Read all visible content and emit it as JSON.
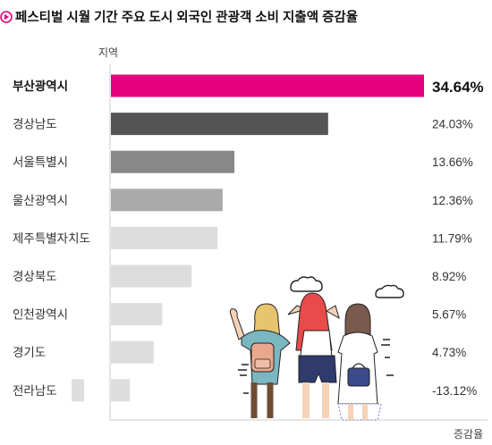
{
  "chart_data": {
    "type": "bar",
    "orientation": "horizontal",
    "title": "페스티벌 시월 기간 주요 도시 외국인 관광객 소비 지출액 증감율",
    "ylabel": "지역",
    "xlabel": "증감율",
    "categories": [
      "부산광역시",
      "경상남도",
      "서울특별시",
      "울산광역시",
      "제주특별자치도",
      "경상북도",
      "인천광역시",
      "경기도",
      "전라남도"
    ],
    "values": [
      34.64,
      24.03,
      13.66,
      12.36,
      11.79,
      8.92,
      5.67,
      4.73,
      -13.12
    ],
    "value_labels": [
      "34.64%",
      "24.03%",
      "13.66%",
      "12.36%",
      "11.79%",
      "8.92%",
      "5.67%",
      "4.73%",
      "-13.12%"
    ],
    "xlim": [
      0,
      34.64
    ],
    "grid": false,
    "legend": "none",
    "highlight_index": 0,
    "colors": [
      "#e6007e",
      "#555555",
      "#888888",
      "#aaaaaa",
      "#dddddd",
      "#dddddd",
      "#dddddd",
      "#dddddd",
      "#dddddd"
    ],
    "accent_color": "#e6007e"
  }
}
